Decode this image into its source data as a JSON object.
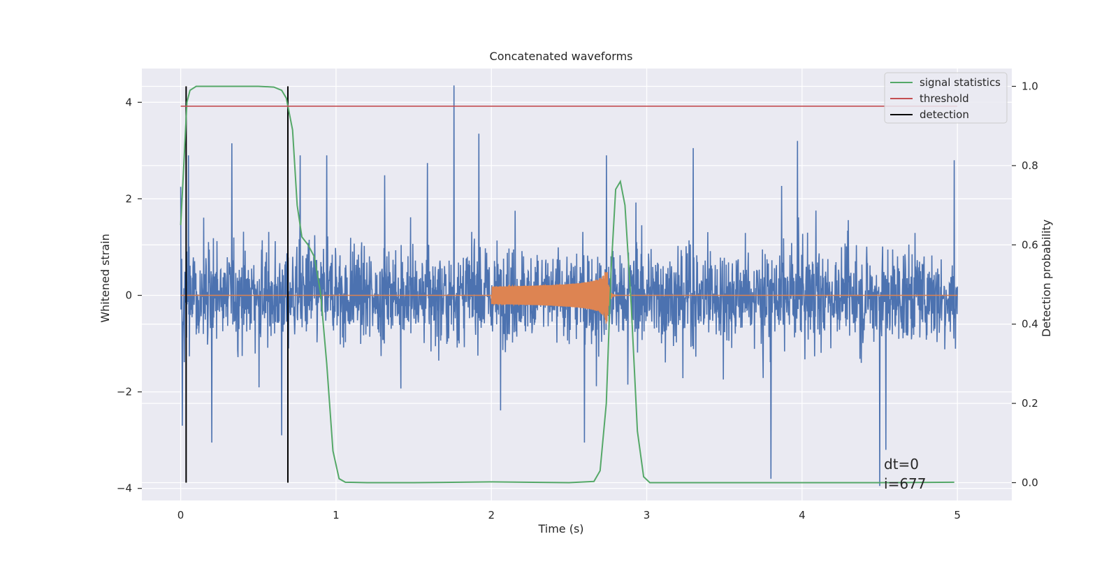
{
  "chart_data": {
    "type": "line",
    "title": "Concatenated waveforms",
    "xlabel": "Time (s)",
    "ylabel": "Whitened strain",
    "y2label": "Detection probability",
    "xlim": [
      -0.25,
      5.35
    ],
    "ylim": [
      -4.25,
      4.7
    ],
    "y2lim": [
      -0.045,
      1.045
    ],
    "xticks": [
      0,
      1,
      2,
      3,
      4,
      5
    ],
    "xtick_labels": [
      "0",
      "1",
      "2",
      "3",
      "4",
      "5"
    ],
    "yticks": [
      -4,
      -2,
      0,
      2,
      4
    ],
    "ytick_labels": [
      "−4",
      "−2",
      "0",
      "2",
      "4"
    ],
    "y2ticks": [
      0.0,
      0.2,
      0.4,
      0.6,
      0.8,
      1.0
    ],
    "y2tick_labels": [
      "0.0",
      "0.2",
      "0.4",
      "0.6",
      "0.8",
      "1.0"
    ],
    "grid": true,
    "background": "#eaeaf2",
    "legend": {
      "position": "top-right",
      "entries": [
        {
          "label": "signal statistics",
          "color": "#55a868"
        },
        {
          "label": "threshold",
          "color": "#c44e52"
        },
        {
          "label": "detection",
          "color": "#000000"
        }
      ]
    },
    "series": [
      {
        "name": "",
        "color": "#4c72b0",
        "axis": "left",
        "kind": "noise",
        "x_range": [
          0,
          5
        ],
        "typical_amplitude": 0.9,
        "peaks": [
          {
            "x": 0.0,
            "y": 2.25
          },
          {
            "x": 0.01,
            "y": -2.7
          },
          {
            "x": 0.05,
            "y": 2.9
          },
          {
            "x": 0.2,
            "y": -3.05
          },
          {
            "x": 0.33,
            "y": 3.15
          },
          {
            "x": 0.65,
            "y": -2.9
          },
          {
            "x": 0.77,
            "y": 2.9
          },
          {
            "x": 0.94,
            "y": 2.9
          },
          {
            "x": 1.76,
            "y": 4.35
          },
          {
            "x": 1.92,
            "y": 3.35
          },
          {
            "x": 2.6,
            "y": -3.05
          },
          {
            "x": 2.74,
            "y": 2.9
          },
          {
            "x": 3.3,
            "y": 3.05
          },
          {
            "x": 3.8,
            "y": -3.8
          },
          {
            "x": 3.97,
            "y": 3.2
          },
          {
            "x": 4.5,
            "y": -3.95
          },
          {
            "x": 4.54,
            "y": -3.2
          },
          {
            "x": 4.98,
            "y": 2.8
          }
        ]
      },
      {
        "name": "",
        "color": "#dd8452",
        "axis": "left",
        "kind": "chirp",
        "baseline": 0,
        "chirp_start": 2.0,
        "merger": 2.74,
        "start_amplitude": 0.18,
        "peak_amplitude": 0.95,
        "x_range": [
          0,
          5
        ]
      },
      {
        "name": "signal statistics",
        "color": "#55a868",
        "axis": "right",
        "points": [
          [
            0.0,
            0.65
          ],
          [
            0.02,
            0.8
          ],
          [
            0.04,
            0.96
          ],
          [
            0.06,
            0.99
          ],
          [
            0.1,
            1.0
          ],
          [
            0.3,
            1.0
          ],
          [
            0.5,
            1.0
          ],
          [
            0.6,
            0.998
          ],
          [
            0.65,
            0.99
          ],
          [
            0.68,
            0.97
          ],
          [
            0.72,
            0.89
          ],
          [
            0.75,
            0.7
          ],
          [
            0.78,
            0.62
          ],
          [
            0.82,
            0.6
          ],
          [
            0.86,
            0.57
          ],
          [
            0.9,
            0.48
          ],
          [
            0.94,
            0.3
          ],
          [
            0.98,
            0.08
          ],
          [
            1.02,
            0.01
          ],
          [
            1.06,
            0.001
          ],
          [
            1.2,
            0.0
          ],
          [
            1.5,
            0.0
          ],
          [
            2.0,
            0.002
          ],
          [
            2.5,
            0.0
          ],
          [
            2.66,
            0.003
          ],
          [
            2.7,
            0.03
          ],
          [
            2.74,
            0.2
          ],
          [
            2.77,
            0.53
          ],
          [
            2.8,
            0.74
          ],
          [
            2.83,
            0.76
          ],
          [
            2.86,
            0.7
          ],
          [
            2.9,
            0.45
          ],
          [
            2.94,
            0.13
          ],
          [
            2.98,
            0.015
          ],
          [
            3.02,
            0.0
          ],
          [
            3.5,
            0.0
          ],
          [
            4.0,
            0.0
          ],
          [
            4.5,
            0.0
          ],
          [
            4.98,
            0.001
          ]
        ]
      },
      {
        "name": "threshold",
        "color": "#c44e52",
        "axis": "right",
        "points": [
          [
            0.0,
            0.95
          ],
          [
            5.0,
            0.95
          ]
        ]
      }
    ],
    "detections": [
      0.035,
      0.69
    ],
    "detection_range": [
      0.0,
      1.0
    ],
    "annotation": {
      "lines": [
        "dt=0",
        "i=677"
      ],
      "x": 4.5,
      "y": -3.6
    }
  }
}
